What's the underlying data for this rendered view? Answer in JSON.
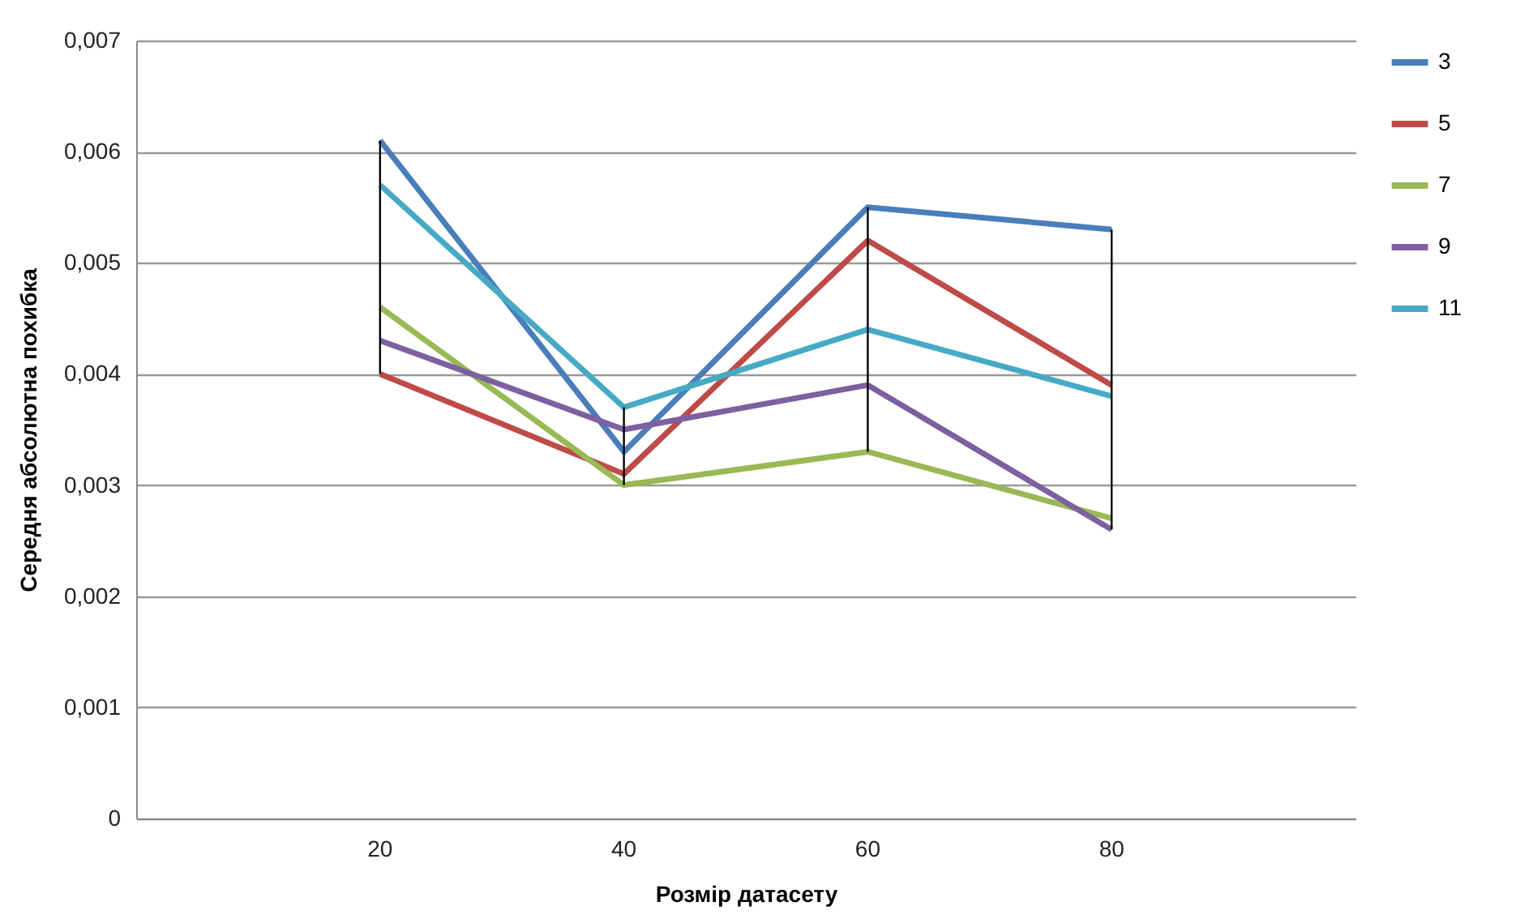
{
  "chart_data": {
    "type": "line",
    "xlabel": "Розмір датасету",
    "ylabel": "Середня абсолютна похибка",
    "categories": [
      "20",
      "40",
      "60",
      "80"
    ],
    "series": [
      {
        "name": "3",
        "color": "#4a7ebb",
        "values": [
          0.0061,
          0.0033,
          0.0055,
          0.0053
        ]
      },
      {
        "name": "5",
        "color": "#be4b48",
        "values": [
          0.004,
          0.0031,
          0.0052,
          0.0039
        ]
      },
      {
        "name": "7",
        "color": "#98b954",
        "values": [
          0.0046,
          0.003,
          0.0033,
          0.0027
        ]
      },
      {
        "name": "9",
        "color": "#7d60a0",
        "values": [
          0.0043,
          0.0035,
          0.0039,
          0.0026
        ]
      },
      {
        "name": "11",
        "color": "#46aac5",
        "values": [
          0.0057,
          0.0037,
          0.0044,
          0.0038
        ]
      }
    ],
    "ylim": [
      0,
      0.007
    ],
    "yticks": [
      {
        "value": 0,
        "label": "0"
      },
      {
        "value": 0.001,
        "label": "0,001"
      },
      {
        "value": 0.002,
        "label": "0,002"
      },
      {
        "value": 0.003,
        "label": "0,003"
      },
      {
        "value": 0.004,
        "label": "0,004"
      },
      {
        "value": 0.005,
        "label": "0,005"
      },
      {
        "value": 0.006,
        "label": "0,006"
      },
      {
        "value": 0.007,
        "label": "0,007"
      }
    ],
    "grid": "y",
    "legend": "right",
    "marker": "none",
    "line_style": "solid"
  }
}
